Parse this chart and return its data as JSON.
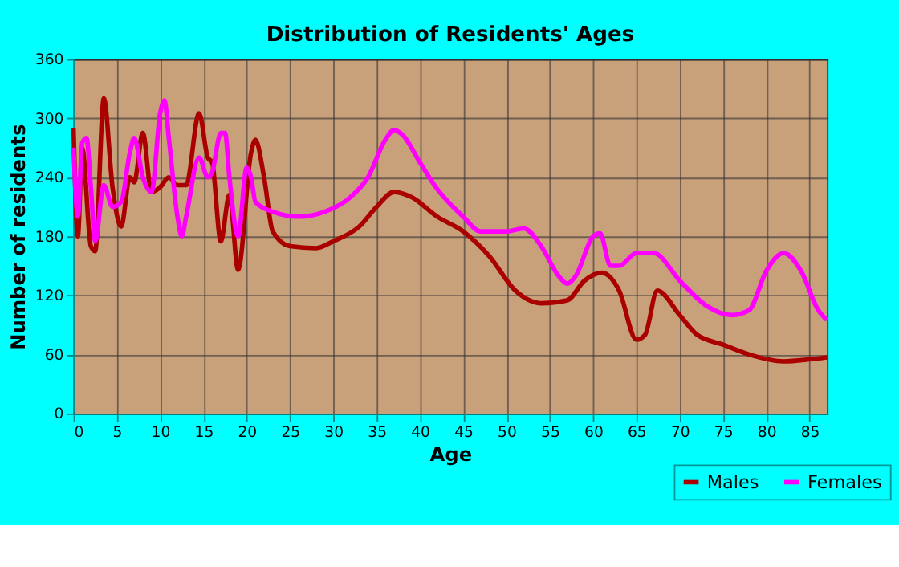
{
  "chart_data": {
    "type": "line",
    "title": "Distribution of Residents' Ages",
    "xlabel": "Age",
    "ylabel": "Number of residents",
    "xlim": [
      0,
      87
    ],
    "xticks": [
      0,
      5,
      10,
      15,
      20,
      25,
      30,
      35,
      40,
      45,
      50,
      55,
      60,
      65,
      70,
      75,
      80,
      85
    ],
    "ylim": [
      0,
      360
    ],
    "yticks": [
      0,
      60,
      120,
      180,
      240,
      300,
      360
    ],
    "grid": true,
    "legend": "bottom right",
    "series": [
      {
        "name": "Males",
        "color": "#aa0000",
        "x": [
          0,
          0.5,
          1,
          2,
          2.5,
          3.5,
          4.5,
          5.5,
          6.5,
          7,
          8,
          9,
          10,
          11,
          12,
          13,
          14.5,
          15.5,
          16,
          17,
          18,
          19,
          20.5,
          21,
          22,
          23,
          25,
          28,
          30,
          33,
          35,
          37,
          39,
          42,
          45,
          48,
          51,
          54,
          57,
          59,
          61,
          63,
          65,
          66,
          67.4,
          70,
          72,
          75,
          78,
          82,
          85,
          87
        ],
        "values": [
          290,
          180,
          270,
          170,
          165,
          320,
          230,
          190,
          240,
          235,
          285,
          225,
          230,
          240,
          232,
          232,
          305,
          260,
          255,
          175,
          222,
          146,
          265,
          278,
          240,
          185,
          170,
          168,
          175,
          190,
          210,
          225,
          220,
          200,
          185,
          160,
          125,
          112,
          115,
          135,
          143,
          125,
          75,
          80,
          125,
          100,
          80,
          70,
          60,
          53,
          55,
          57
        ]
      },
      {
        "name": "Females",
        "color": "#ff00ff",
        "x": [
          0,
          0.5,
          1,
          1.5,
          2,
          2.5,
          3.5,
          4.5,
          5.5,
          6.5,
          7,
          8,
          9,
          10,
          10.5,
          11,
          12,
          12.5,
          13,
          14.5,
          15.5,
          16,
          17,
          17.5,
          18,
          19,
          20,
          20.5,
          21,
          23,
          26,
          29,
          32,
          34,
          36,
          37,
          38,
          40,
          42,
          45,
          47,
          50,
          52,
          54,
          56,
          57,
          58,
          60,
          60.8,
          62,
          63,
          65,
          67,
          70,
          73,
          76,
          78,
          80,
          82,
          84,
          86,
          87
        ],
        "values": [
          270,
          200,
          275,
          280,
          230,
          175,
          232,
          210,
          215,
          265,
          280,
          240,
          225,
          305,
          318,
          280,
          200,
          180,
          200,
          260,
          240,
          245,
          285,
          285,
          240,
          180,
          250,
          240,
          215,
          205,
          200,
          205,
          220,
          240,
          278,
          288,
          283,
          255,
          228,
          200,
          185,
          185,
          188,
          170,
          140,
          132,
          140,
          180,
          183,
          150,
          150,
          163,
          163,
          135,
          110,
          100,
          105,
          145,
          163,
          145,
          105,
          95
        ]
      }
    ]
  }
}
